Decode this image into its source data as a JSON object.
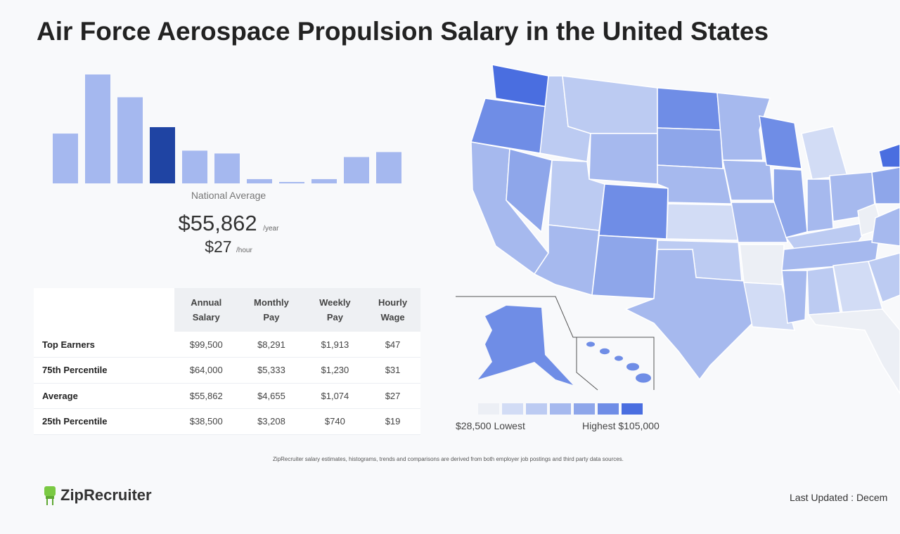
{
  "title": "Air Force Aerospace Propulsion Salary in the United States",
  "national": {
    "label": "National Average",
    "annual": "$55,862",
    "annual_unit": "/year",
    "hourly": "$27",
    "hourly_unit": "/hour"
  },
  "chart_data": {
    "type": "bar",
    "values": [
      70,
      153,
      121,
      79,
      46,
      42,
      6,
      2,
      6,
      37,
      44
    ],
    "highlight_index": 3,
    "colors": {
      "bar": "#a5b8ef",
      "highlight": "#1f44a3"
    },
    "title": "",
    "xlabel": "",
    "ylabel": ""
  },
  "table": {
    "headers": [
      [
        "Annual",
        "Salary"
      ],
      [
        "Monthly",
        "Pay"
      ],
      [
        "Weekly",
        "Pay"
      ],
      [
        "Hourly",
        "Wage"
      ]
    ],
    "rows": [
      {
        "label": "Top Earners",
        "values": [
          "$99,500",
          "$8,291",
          "$1,913",
          "$47"
        ]
      },
      {
        "label": "75th Percentile",
        "values": [
          "$64,000",
          "$5,333",
          "$1,230",
          "$31"
        ]
      },
      {
        "label": "Average",
        "values": [
          "$55,862",
          "$4,655",
          "$1,074",
          "$27"
        ]
      },
      {
        "label": "25th Percentile",
        "values": [
          "$38,500",
          "$3,208",
          "$740",
          "$19"
        ]
      }
    ]
  },
  "map": {
    "legend_colors": [
      "#eceff5",
      "#d2dcf5",
      "#bccbf2",
      "#a6b9ee",
      "#8ea6ea",
      "#6f8de6",
      "#4a6ee0"
    ],
    "low": "$28,500 Lowest",
    "high": "Highest $105,000"
  },
  "disclaimer": "ZipRecruiter salary estimates, histograms, trends and comparisons are derived from both employer job postings and third party data sources.",
  "logo": "ZipRecruiter",
  "updated": "Last Updated : Decem"
}
